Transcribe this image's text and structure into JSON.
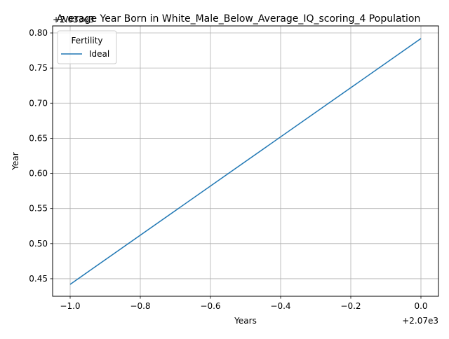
{
  "chart_data": {
    "type": "line",
    "title": "Average Year Born in White_Male_Below_Average_IQ_scoring_4 Population",
    "xlabel": "Years",
    "ylabel": "Year",
    "x_offset_label": "+2.07e3",
    "y_offset_label": "+2.033e3",
    "xlim": [
      -1.05,
      0.05
    ],
    "ylim": [
      0.425,
      0.81
    ],
    "x_ticks": [
      -1.0,
      -0.8,
      -0.6,
      -0.4,
      -0.2,
      0.0
    ],
    "x_tick_labels": [
      "−1.0",
      "−0.8",
      "−0.6",
      "−0.4",
      "−0.2",
      "0.0"
    ],
    "y_ticks": [
      0.45,
      0.5,
      0.55,
      0.6,
      0.65,
      0.7,
      0.75,
      0.8
    ],
    "y_tick_labels": [
      "0.45",
      "0.50",
      "0.55",
      "0.60",
      "0.65",
      "0.70",
      "0.75",
      "0.80"
    ],
    "grid": true,
    "legend": {
      "title": "Fertility",
      "placement": "top-left"
    },
    "series": [
      {
        "name": "Ideal",
        "color": "#1f77b4",
        "x": [
          -1.0,
          0.0
        ],
        "y": [
          0.442,
          0.792
        ]
      }
    ]
  }
}
